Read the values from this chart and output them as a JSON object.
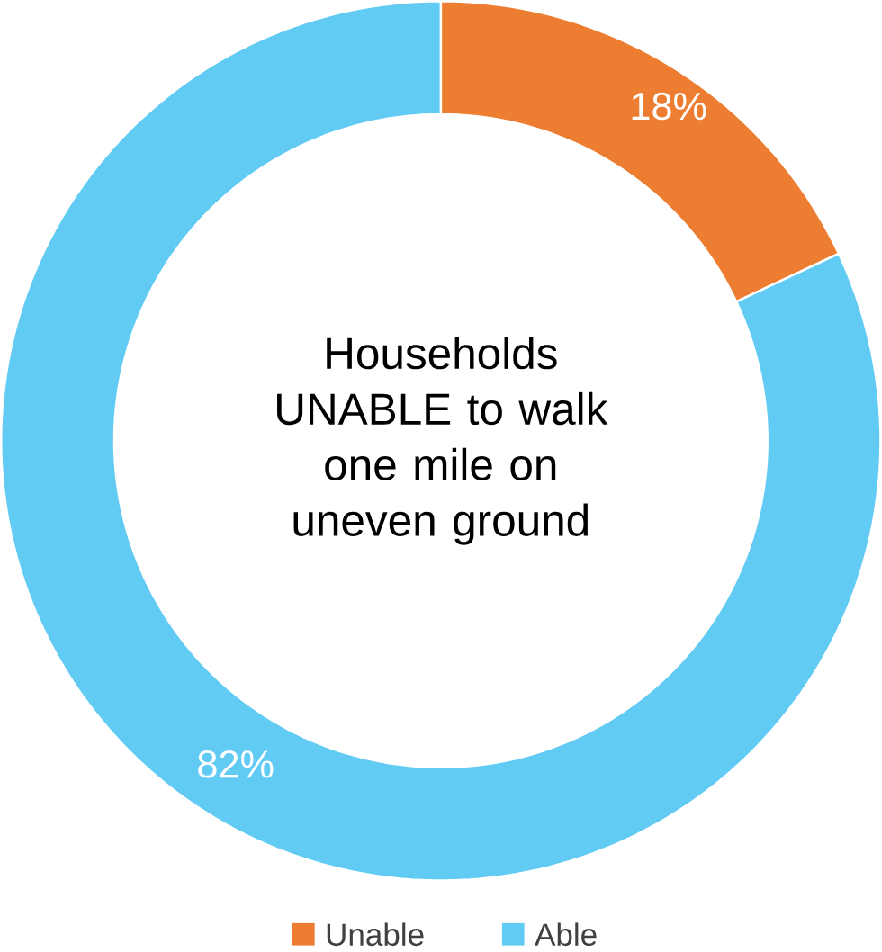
{
  "chart_data": {
    "type": "donut",
    "title": "Households UNABLE to walk one mile on uneven ground",
    "categories": [
      "Unable",
      "Able"
    ],
    "values": [
      18,
      82
    ],
    "colors": [
      "#ed7d31",
      "#61cbf3"
    ],
    "value_labels": [
      "18%",
      "82%"
    ],
    "legend": "bottom"
  }
}
